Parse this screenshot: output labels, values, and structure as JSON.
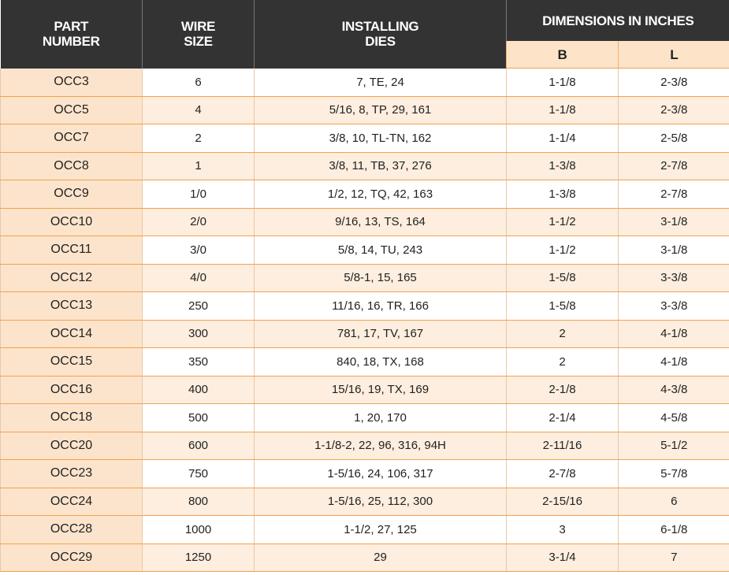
{
  "table": {
    "headers": [
      "PART NUMBER",
      "WIRE SIZE",
      "INSTALLING DIES",
      "DIMENSIONS IN INCHES"
    ],
    "subheaders": [
      "B",
      "L"
    ],
    "rows": [
      [
        "OCC3",
        "6",
        "7, TE, 24",
        "1-1/8",
        "2-3/8"
      ],
      [
        "OCC5",
        "4",
        "5/16, 8, TP, 29, 161",
        "1-1/8",
        "2-3/8"
      ],
      [
        "OCC7",
        "2",
        "3/8, 10, TL-TN, 162",
        "1-1/4",
        "2-5/8"
      ],
      [
        "OCC8",
        "1",
        "3/8, 11, TB, 37, 276",
        "1-3/8",
        "2-7/8"
      ],
      [
        "OCC9",
        "1/0",
        "1/2, 12, TQ, 42, 163",
        "1-3/8",
        "2-7/8"
      ],
      [
        "OCC10",
        "2/0",
        "9/16, 13, TS, 164",
        "1-1/2",
        "3-1/8"
      ],
      [
        "OCC11",
        "3/0",
        "5/8, 14, TU, 243",
        "1-1/2",
        "3-1/8"
      ],
      [
        "OCC12",
        "4/0",
        "5/8-1, 15, 165",
        "1-5/8",
        "3-3/8"
      ],
      [
        "OCC13",
        "250",
        "11/16, 16, TR, 166",
        "1-5/8",
        "3-3/8"
      ],
      [
        "OCC14",
        "300",
        "781, 17, TV, 167",
        "2",
        "4-1/8"
      ],
      [
        "OCC15",
        "350",
        "840, 18, TX, 168",
        "2",
        "4-1/8"
      ],
      [
        "OCC16",
        "400",
        "15/16, 19, TX, 169",
        "2-1/8",
        "4-3/8"
      ],
      [
        "OCC18",
        "500",
        "1, 20, 170",
        "2-1/4",
        "4-5/8"
      ],
      [
        "OCC20",
        "600",
        "1-1/8-2, 22, 96, 316, 94H",
        "2-11/16",
        "5-1/2"
      ],
      [
        "OCC23",
        "750",
        "1-5/16, 24, 106, 317",
        "2-7/8",
        "5-7/8"
      ],
      [
        "OCC24",
        "800",
        "1-5/16, 25, 112, 300",
        "2-15/16",
        "6"
      ],
      [
        "OCC28",
        "1000",
        "1-1/2, 27, 125",
        "3",
        "6-1/8"
      ],
      [
        "OCC29",
        "1250",
        "29",
        "3-1/4",
        "7"
      ]
    ]
  }
}
